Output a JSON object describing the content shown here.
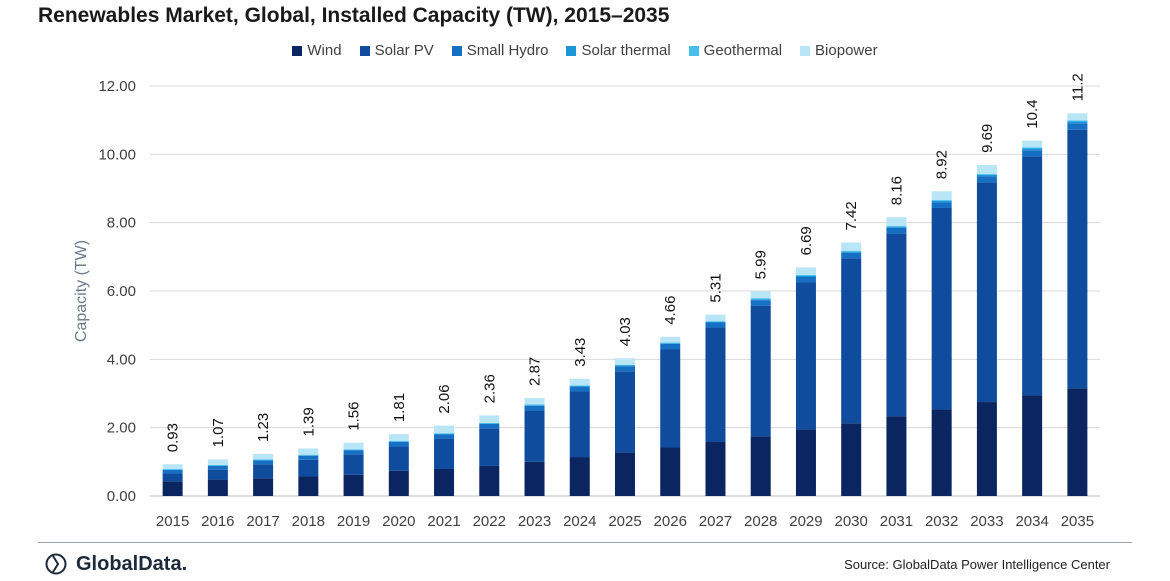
{
  "chart_data": {
    "type": "bar",
    "stacked": true,
    "title": "Renewables Market, Global, Installed Capacity (TW), 2015–2035",
    "ylabel": "Capacity (TW)",
    "xlabel": "",
    "ylim": [
      0,
      12
    ],
    "yticks": [
      "0.00",
      "2.00",
      "4.00",
      "6.00",
      "8.00",
      "10.00",
      "12.00"
    ],
    "legend_position": "top",
    "grid": true,
    "categories": [
      "2015",
      "2016",
      "2017",
      "2018",
      "2019",
      "2020",
      "2021",
      "2022",
      "2023",
      "2024",
      "2025",
      "2026",
      "2027",
      "2028",
      "2029",
      "2030",
      "2031",
      "2032",
      "2033",
      "2034",
      "2035"
    ],
    "series": [
      {
        "name": "Wind",
        "color": "#0b2560",
        "values": [
          0.43,
          0.48,
          0.52,
          0.57,
          0.62,
          0.74,
          0.79,
          0.88,
          1.0,
          1.14,
          1.27,
          1.42,
          1.58,
          1.75,
          1.95,
          2.13,
          2.33,
          2.53,
          2.75,
          2.94,
          3.15
        ]
      },
      {
        "name": "Solar PV",
        "color": "#0f4c9e",
        "values": [
          0.23,
          0.29,
          0.41,
          0.49,
          0.6,
          0.71,
          0.89,
          1.1,
          1.5,
          1.92,
          2.38,
          2.88,
          3.35,
          3.82,
          4.3,
          4.83,
          5.35,
          5.9,
          6.43,
          7.0,
          7.57
        ]
      },
      {
        "name": "Small Hydro",
        "color": "#1570c4",
        "values": [
          0.1,
          0.11,
          0.11,
          0.12,
          0.12,
          0.13,
          0.13,
          0.13,
          0.14,
          0.14,
          0.15,
          0.15,
          0.15,
          0.16,
          0.16,
          0.16,
          0.17,
          0.17,
          0.18,
          0.18,
          0.19
        ]
      },
      {
        "name": "Solar thermal",
        "color": "#1c96d8",
        "values": [
          0.01,
          0.01,
          0.01,
          0.01,
          0.01,
          0.01,
          0.01,
          0.01,
          0.02,
          0.02,
          0.02,
          0.02,
          0.02,
          0.03,
          0.03,
          0.03,
          0.03,
          0.04,
          0.04,
          0.05,
          0.05
        ]
      },
      {
        "name": "Geothermal",
        "color": "#44bfee",
        "values": [
          0.02,
          0.02,
          0.02,
          0.02,
          0.02,
          0.02,
          0.02,
          0.02,
          0.02,
          0.02,
          0.02,
          0.02,
          0.02,
          0.03,
          0.03,
          0.03,
          0.03,
          0.03,
          0.03,
          0.03,
          0.03
        ]
      },
      {
        "name": "Biopower",
        "color": "#b9e6f6",
        "values": [
          0.14,
          0.16,
          0.16,
          0.18,
          0.19,
          0.2,
          0.22,
          0.22,
          0.19,
          0.19,
          0.19,
          0.17,
          0.19,
          0.2,
          0.22,
          0.24,
          0.25,
          0.25,
          0.26,
          0.2,
          0.21
        ]
      }
    ],
    "totals_labels": [
      "0.93",
      "1.07",
      "1.23",
      "1.39",
      "1.56",
      "1.81",
      "2.06",
      "2.36",
      "2.87",
      "3.43",
      "4.03",
      "4.66",
      "5.31",
      "5.99",
      "6.69",
      "7.42",
      "8.16",
      "8.92",
      "9.69",
      "10.4",
      "11.2"
    ],
    "totals": [
      0.93,
      1.07,
      1.23,
      1.39,
      1.56,
      1.81,
      2.06,
      2.36,
      2.87,
      3.43,
      4.03,
      4.66,
      5.31,
      5.99,
      6.69,
      7.42,
      8.16,
      8.92,
      9.69,
      10.4,
      11.2
    ]
  },
  "footer": {
    "brand": "GlobalData.",
    "source": "Source: GlobalData Power Intelligence Center",
    "brand_icon": "globaldata-logo-icon"
  }
}
